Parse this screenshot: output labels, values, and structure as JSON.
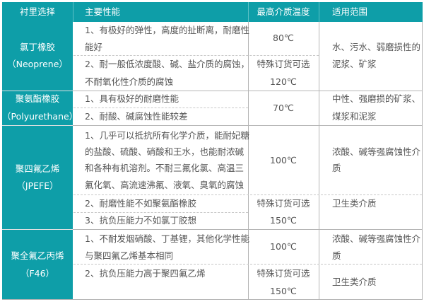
{
  "colors": {
    "header": "#0e9ea8",
    "text": "#555555"
  },
  "header": [
    "衬里选择",
    "主要性能",
    "最高介质温度",
    "适用范围"
  ],
  "rows": [
    {
      "lining": [
        "氯丁橡胶",
        "（Neoprene）"
      ],
      "props": [
        "1、有极好的弹性，高度的扯断离，耐磨性",
        "能好",
        "2、耐一般低浓度酸、碱、盐介质的腐蚀，",
        "不耐氧化性介质的腐蚀"
      ],
      "temp": [
        "80℃",
        "特殊订货可选",
        "120℃"
      ],
      "use": [
        "水、污水、弱磨损性的",
        "泥浆、矿浆"
      ]
    },
    {
      "lining": [
        "聚氨酯橡胶",
        "（Polyurethane）"
      ],
      "props": [
        "1、具有极好的耐磨性能",
        "2、耐酸、碱腐蚀性能较差"
      ],
      "temp": [
        "70℃"
      ],
      "use": [
        "中性、强磨损的矿浆、",
        "煤浆和泥浆"
      ]
    },
    {
      "lining": [
        "聚四氟乙烯",
        "（JPEFE）"
      ],
      "props": [
        "1、几乎可以抵抗所有化学介质，能耐妃糖",
        "的盐酸、硫酸、硝酸和王水，也能耐浓碱",
        "和各种有机溶剂。不耐三氟化氯、高温三",
        "氟化氧、高流速沸氟、液氧、臭氧的腐蚀",
        "2、耐磨性能不如聚氨酯橡胶",
        "3、抗负压能力不如氯丁胶想"
      ],
      "temp": [
        "100℃",
        "特殊订货可选",
        "150℃"
      ],
      "use": [
        "浓酸、碱等强腐蚀性介",
        "质",
        "卫生类介质"
      ]
    },
    {
      "lining": [
        "聚全氟乙丙烯",
        "（F46）"
      ],
      "props": [
        "1、不耐发烟硝酸、丁基锂，其他化学性能",
        "与聚四氟乙烯基本相同",
        "2、抗负压能力高于聚四氟乙烯"
      ],
      "temp": [
        "100℃",
        "特殊订货可选",
        "150℃"
      ],
      "use": [
        "浓酸、碱等强腐蚀性介",
        "质",
        "卫生类介质"
      ]
    }
  ]
}
